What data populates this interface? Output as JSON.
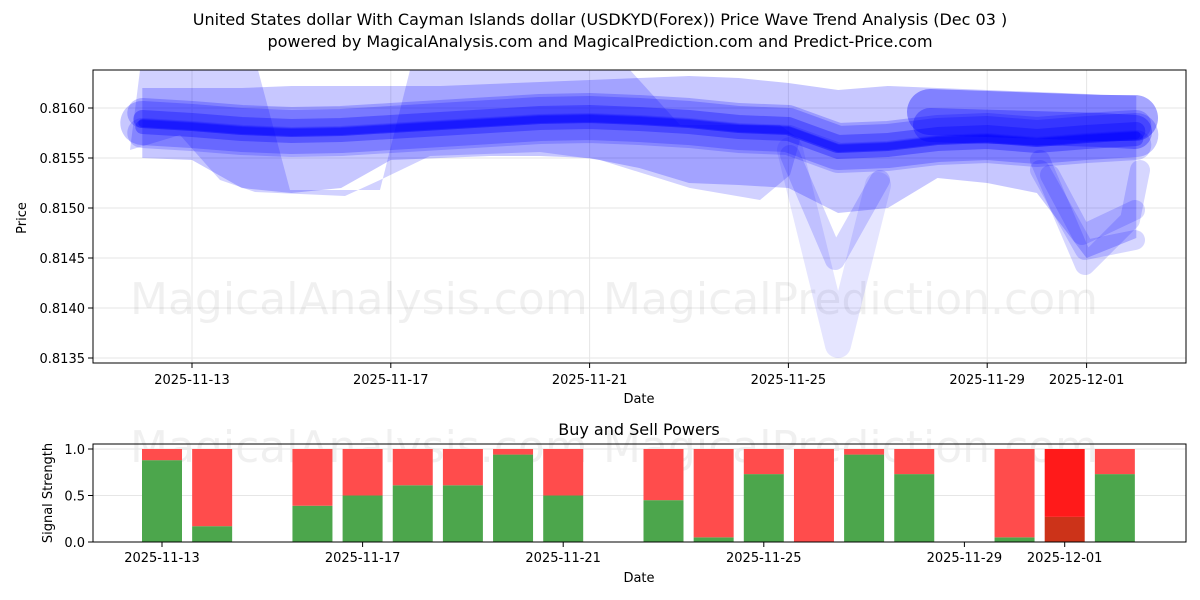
{
  "title": {
    "line1": "United States dollar With Cayman Islands dollar (USDKYD(Forex)) Price Wave Trend Analysis (Dec 03 )",
    "line2": "powered by MagicalAnalysis.com and MagicalPrediction.com and Predict-Price.com"
  },
  "watermarks": {
    "left": "MagicalAnalysis.com",
    "right": "MagicalPrediction.com"
  },
  "colors": {
    "wave": "#0000ff",
    "buy": "#4ca64c",
    "sell": "#ff4c4c",
    "sell_strong": "#ff1a1a",
    "buy_strong": "#cc3319",
    "grid": "#e6e6e6"
  },
  "chart_data": [
    {
      "type": "area",
      "title": "Price Wave Trend Analysis",
      "xlabel": "Date",
      "ylabel": "Price",
      "ylim": [
        0.81345,
        0.81638
      ],
      "yticks": [
        "0.8135",
        "0.8140",
        "0.8145",
        "0.8150",
        "0.8155",
        "0.8160"
      ],
      "xticks": [
        "2025-11-13",
        "2025-11-17",
        "2025-11-21",
        "2025-11-25",
        "2025-11-29",
        "2025-12-01"
      ],
      "grid": true,
      "x": [
        "2025-11-12",
        "2025-11-13",
        "2025-11-14",
        "2025-11-15",
        "2025-11-16",
        "2025-11-17",
        "2025-11-18",
        "2025-11-19",
        "2025-11-20",
        "2025-11-21",
        "2025-11-22",
        "2025-11-23",
        "2025-11-24",
        "2025-11-25",
        "2025-11-26",
        "2025-11-27",
        "2025-11-28",
        "2025-11-29",
        "2025-11-30",
        "2025-12-01",
        "2025-12-02"
      ],
      "series": [
        {
          "name": "wave center",
          "values": [
            0.81585,
            0.81582,
            0.81578,
            0.81576,
            0.81577,
            0.8158,
            0.81583,
            0.81586,
            0.81589,
            0.8159,
            0.81588,
            0.81585,
            0.8158,
            0.81578,
            0.8156,
            0.81562,
            0.81568,
            0.8157,
            0.81566,
            0.8157,
            0.81573
          ]
        },
        {
          "name": "wave upper band",
          "values": [
            0.8162,
            0.8162,
            0.8162,
            0.81622,
            0.81622,
            0.81622,
            0.81622,
            0.81624,
            0.81626,
            0.81628,
            0.8163,
            0.81632,
            0.8163,
            0.81625,
            0.81618,
            0.81622,
            0.8162,
            0.81618,
            0.81616,
            0.81614,
            0.81612
          ]
        },
        {
          "name": "wave lower band",
          "values": [
            0.8155,
            0.81548,
            0.8152,
            0.81515,
            0.8152,
            0.81548,
            0.8155,
            0.81552,
            0.81552,
            0.8155,
            0.8154,
            0.81525,
            0.81523,
            0.8152,
            0.81495,
            0.815,
            0.8153,
            0.81525,
            0.81515,
            0.8145,
            0.8147
          ]
        },
        {
          "name": "wave extreme low",
          "values": [
            null,
            null,
            null,
            null,
            null,
            null,
            null,
            null,
            null,
            null,
            null,
            null,
            null,
            0.8155,
            0.81355,
            0.8152,
            null,
            null,
            0.815,
            0.81437,
            0.8147
          ]
        }
      ]
    },
    {
      "type": "bar",
      "title": "Buy and Sell Powers",
      "xlabel": "Date",
      "ylabel": "Signal Strength",
      "ylim": [
        0,
        1.05
      ],
      "yticks": [
        "0.0",
        "0.5",
        "1.0"
      ],
      "xticks": [
        "2025-11-13",
        "2025-11-17",
        "2025-11-21",
        "2025-11-25",
        "2025-11-29",
        "2025-12-01"
      ],
      "grid": true,
      "stacked": true,
      "categories": [
        "2025-11-13",
        "2025-11-14",
        "2025-11-16",
        "2025-11-17",
        "2025-11-18",
        "2025-11-19",
        "2025-11-20",
        "2025-11-21",
        "2025-11-23",
        "2025-11-24",
        "2025-11-25",
        "2025-11-26",
        "2025-11-27",
        "2025-11-28",
        "2025-11-30",
        "2025-12-01",
        "2025-12-02"
      ],
      "series": [
        {
          "name": "Buy",
          "values": [
            0.88,
            0.17,
            0.39,
            0.5,
            0.61,
            0.61,
            0.94,
            0.5,
            0.45,
            0.05,
            0.73,
            0.0,
            0.94,
            0.73,
            0.05,
            0.27,
            0.73
          ]
        },
        {
          "name": "Sell",
          "values": [
            0.12,
            0.83,
            0.61,
            0.5,
            0.39,
            0.39,
            0.06,
            0.5,
            0.55,
            0.95,
            0.27,
            1.0,
            0.06,
            0.27,
            0.95,
            0.73,
            0.27
          ]
        }
      ],
      "highlight": "2025-12-01"
    }
  ]
}
